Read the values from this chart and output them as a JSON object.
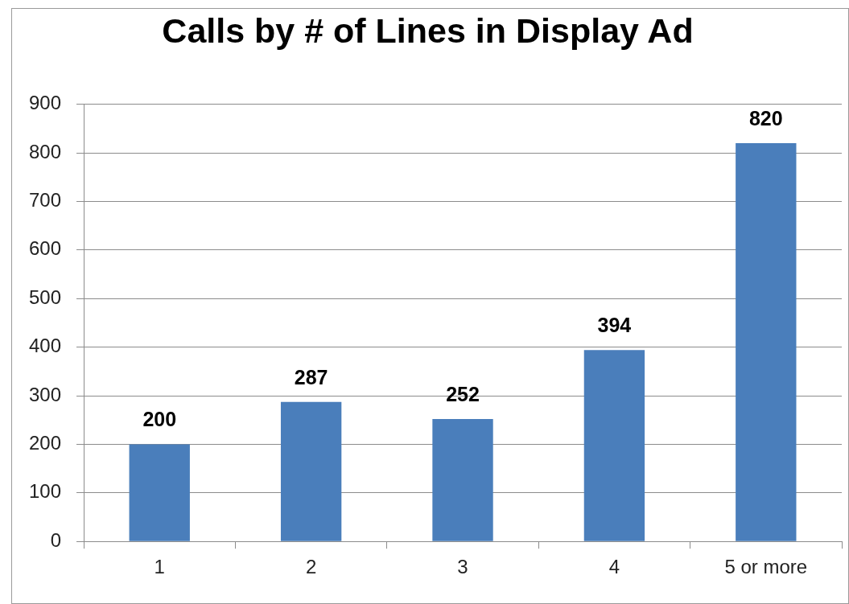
{
  "chart_data": {
    "type": "bar",
    "title": "Calls by # of Lines in Display Ad",
    "categories": [
      "1",
      "2",
      "3",
      "4",
      "5 or more"
    ],
    "values": [
      200,
      287,
      252,
      394,
      820
    ],
    "color": "#4a7ebb",
    "ylim": [
      0,
      900
    ],
    "yticks": [
      0,
      100,
      200,
      300,
      400,
      500,
      600,
      700,
      800,
      900
    ],
    "grid": "y",
    "data_labels": true
  }
}
